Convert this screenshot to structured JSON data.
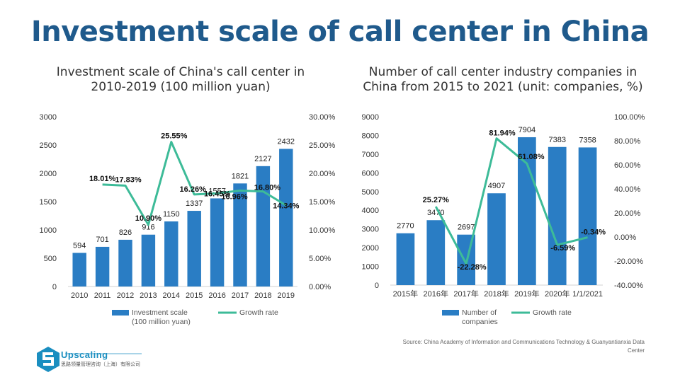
{
  "page_title": "Investment scale of call center in China",
  "source_note": "Source: China Academy of Information and Communications Technology & Guanyantianxia Data Center",
  "brand": {
    "name": "Upscaling",
    "subtitle": "思路领量管理咨询（上海）有限公司",
    "color": "#1a8ec0"
  },
  "colors": {
    "bar": "#2a7dc4",
    "line": "#3dbb98",
    "title": "#1f5a8c"
  },
  "chart_data": [
    {
      "type": "bar",
      "title": "Investment scale of China's call center in 2010-2019 (100 million yuan)",
      "categories": [
        "2010",
        "2011",
        "2012",
        "2013",
        "2014",
        "2015",
        "2016",
        "2017",
        "2018",
        "2019"
      ],
      "series": [
        {
          "name": "Investment scale (100 million yuan)",
          "type": "bar",
          "axis": "left",
          "values": [
            594,
            701,
            826,
            916,
            1150,
            1337,
            1557,
            1821,
            2127,
            2432
          ]
        },
        {
          "name": "Growth rate",
          "type": "line",
          "axis": "right",
          "values": [
            null,
            18.01,
            17.83,
            10.9,
            25.55,
            16.26,
            16.45,
            16.96,
            16.8,
            14.34
          ],
          "labels": [
            "",
            "18.01%",
            "17.83%",
            "10.90%",
            "25.55%",
            "16.26%",
            "16.45%",
            "16.96%",
            "16.80%",
            "14.34%"
          ]
        }
      ],
      "y_left": {
        "min": 0,
        "max": 3000,
        "ticks": [
          "0",
          "500",
          "1000",
          "1500",
          "2000",
          "2500",
          "3000"
        ]
      },
      "y_right": {
        "min": 0,
        "max": 30,
        "ticks": [
          "0.00%",
          "5.00%",
          "10.00%",
          "15.00%",
          "20.00%",
          "25.00%",
          "30.00%"
        ]
      },
      "legend": [
        "Investment scale",
        "(100 million yuan)",
        "Growth rate"
      ],
      "legend_position": "bottom",
      "grid": false
    },
    {
      "type": "bar",
      "title": "Number of call center industry companies in China from 2015 to 2021 (unit: companies, %)",
      "categories": [
        "2015年",
        "2016年",
        "2017年",
        "2018年",
        "2019年",
        "2020年",
        "1/1/2021"
      ],
      "series": [
        {
          "name": "Number of companies",
          "type": "bar",
          "axis": "left",
          "values": [
            2770,
            3470,
            2697,
            4907,
            7904,
            7383,
            7358
          ]
        },
        {
          "name": "Growth rate",
          "type": "line",
          "axis": "right",
          "values": [
            null,
            25.27,
            -22.28,
            81.94,
            61.08,
            -6.59,
            -0.34
          ],
          "labels": [
            "",
            "25.27%",
            "-22.28%",
            "81.94%",
            "61.08%",
            "-6.59%",
            "-0.34%"
          ]
        }
      ],
      "y_left": {
        "min": 0,
        "max": 9000,
        "ticks": [
          "0",
          "1000",
          "2000",
          "3000",
          "4000",
          "5000",
          "6000",
          "7000",
          "8000",
          "9000"
        ]
      },
      "y_right": {
        "min": -40,
        "max": 100,
        "ticks": [
          "-40.00%",
          "-20.00%",
          "0.00%",
          "20.00%",
          "40.00%",
          "60.00%",
          "80.00%",
          "100.00%"
        ]
      },
      "legend": [
        "Number of",
        "companies",
        "Growth rate"
      ],
      "legend_position": "bottom",
      "grid": false
    }
  ]
}
